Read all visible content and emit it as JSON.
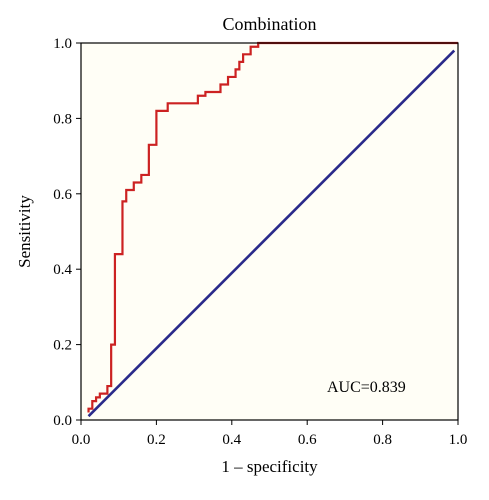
{
  "chart_data": {
    "type": "line",
    "title": "Combination",
    "xlabel": "1 – specificity",
    "ylabel": "Sensitivity",
    "xlim": [
      0.0,
      1.0
    ],
    "ylim": [
      0.0,
      1.0
    ],
    "xticks": [
      "0.0",
      "0.2",
      "0.4",
      "0.6",
      "0.8",
      "1.0"
    ],
    "yticks": [
      "0.0",
      "0.2",
      "0.4",
      "0.6",
      "0.8",
      "1.0"
    ],
    "grid": false,
    "annotation": "AUC=0.839",
    "colors": {
      "roc": "#cc2222",
      "reference": "#2a2a8a",
      "plot_bg": "#fffef6"
    },
    "series": [
      {
        "x": [
          0.02,
          0.02,
          0.03,
          0.03,
          0.04,
          0.04,
          0.05,
          0.05,
          0.07,
          0.07,
          0.08,
          0.08,
          0.09,
          0.09,
          0.11,
          0.11,
          0.12,
          0.12,
          0.14,
          0.14,
          0.16,
          0.16,
          0.18,
          0.18,
          0.2,
          0.2,
          0.23,
          0.23,
          0.31,
          0.31,
          0.33,
          0.33,
          0.37,
          0.37,
          0.39,
          0.39,
          0.41,
          0.41,
          0.42,
          0.42,
          0.43,
          0.43,
          0.45,
          0.45,
          0.47,
          0.47,
          1.0
        ],
        "y": [
          0.02,
          0.03,
          0.03,
          0.05,
          0.05,
          0.06,
          0.06,
          0.07,
          0.07,
          0.09,
          0.09,
          0.2,
          0.2,
          0.44,
          0.44,
          0.58,
          0.58,
          0.61,
          0.61,
          0.63,
          0.63,
          0.65,
          0.65,
          0.73,
          0.73,
          0.82,
          0.82,
          0.84,
          0.84,
          0.86,
          0.86,
          0.87,
          0.87,
          0.89,
          0.89,
          0.91,
          0.91,
          0.93,
          0.93,
          0.95,
          0.95,
          0.97,
          0.97,
          0.99,
          0.99,
          1.0,
          1.0
        ]
      },
      {
        "x": [
          0.02,
          0.99
        ],
        "y": [
          0.01,
          0.98
        ]
      }
    ]
  }
}
